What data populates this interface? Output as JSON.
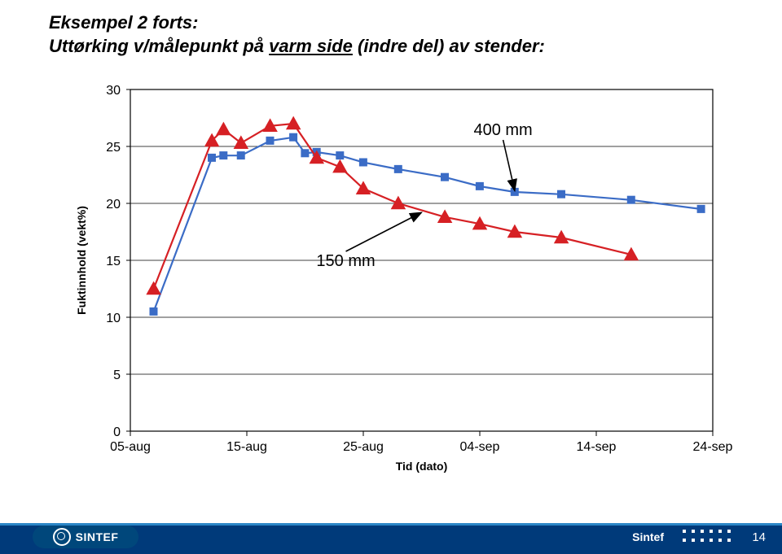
{
  "title_line1_a": "Eksempel 2 forts:",
  "title_line2_a": "Uttørking v/målepunkt på ",
  "title_line2_u": "varm side",
  "title_line2_b": " (indre del) av stender:",
  "footer_name": "Sintef",
  "logo_text": "SINTEF",
  "page_number": "14",
  "chart": {
    "type": "line",
    "ylabel": "Fuktinnhold (vekt%)",
    "xlabel": "Tid (dato)",
    "ylim": [
      0,
      30
    ],
    "ytick_step": 5,
    "xlim": [
      0,
      50
    ],
    "xticks": [
      0,
      10,
      20,
      30,
      40,
      50
    ],
    "xtick_labels": [
      "05-aug",
      "15-aug",
      "25-aug",
      "04-sep",
      "14-sep",
      "24-sep"
    ],
    "background_color": "#ffffff",
    "grid_color": "#000000",
    "axis_color": "#000000",
    "label_fontsize": 14,
    "tick_fontsize": 16,
    "line_width": 2.2,
    "marker_size": 6,
    "series": [
      {
        "name": "400 mm",
        "color": "#3b6cc6",
        "marker": "square",
        "data": [
          {
            "x": 2.0,
            "y": 10.5
          },
          {
            "x": 7.0,
            "y": 24.0
          },
          {
            "x": 8.0,
            "y": 24.2
          },
          {
            "x": 9.5,
            "y": 24.2
          },
          {
            "x": 12.0,
            "y": 25.5
          },
          {
            "x": 14.0,
            "y": 25.8
          },
          {
            "x": 15.0,
            "y": 24.4
          },
          {
            "x": 16.0,
            "y": 24.5
          },
          {
            "x": 18.0,
            "y": 24.2
          },
          {
            "x": 20.0,
            "y": 23.6
          },
          {
            "x": 23.0,
            "y": 23.0
          },
          {
            "x": 27.0,
            "y": 22.3
          },
          {
            "x": 30.0,
            "y": 21.5
          },
          {
            "x": 33.0,
            "y": 21.0
          },
          {
            "x": 37.0,
            "y": 20.8
          },
          {
            "x": 43.0,
            "y": 20.3
          },
          {
            "x": 49.0,
            "y": 19.5
          }
        ]
      },
      {
        "name": "150 mm",
        "color": "#d62024",
        "marker": "triangle",
        "data": [
          {
            "x": 2.0,
            "y": 12.5
          },
          {
            "x": 7.0,
            "y": 25.5
          },
          {
            "x": 8.0,
            "y": 26.5
          },
          {
            "x": 9.5,
            "y": 25.3
          },
          {
            "x": 12.0,
            "y": 26.8
          },
          {
            "x": 14.0,
            "y": 27.0
          },
          {
            "x": 16.0,
            "y": 24.0
          },
          {
            "x": 18.0,
            "y": 23.2
          },
          {
            "x": 20.0,
            "y": 21.3
          },
          {
            "x": 23.0,
            "y": 20.0
          },
          {
            "x": 27.0,
            "y": 18.8
          },
          {
            "x": 30.0,
            "y": 18.2
          },
          {
            "x": 33.0,
            "y": 17.5
          },
          {
            "x": 37.0,
            "y": 17.0
          },
          {
            "x": 43.0,
            "y": 15.5
          }
        ]
      }
    ],
    "annotations": [
      {
        "label": "400 mm",
        "tx": 32,
        "ty": 26,
        "ax": 33,
        "ay": 21.1,
        "fontsize": 20
      },
      {
        "label": "150 mm",
        "tx": 18.5,
        "ty": 14.5,
        "ax": 25,
        "ay": 19.2,
        "fontsize": 20
      }
    ]
  }
}
